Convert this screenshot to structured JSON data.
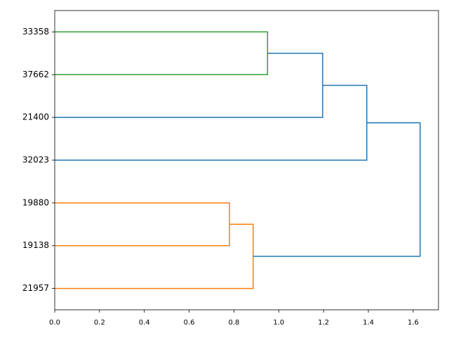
{
  "chart_data": {
    "type": "dendrogram",
    "leaves": [
      "33358",
      "37662",
      "21400",
      "32023",
      "19880",
      "19138",
      "21957"
    ],
    "merges": [
      {
        "left": 0,
        "right": 1,
        "height": 0.95,
        "color": "#2ca02c"
      },
      {
        "left": 7,
        "right": 2,
        "height": 1.196,
        "color": "#1f77b4"
      },
      {
        "left": 8,
        "right": 3,
        "height": 1.393,
        "color": "#1f77b4"
      },
      {
        "left": 4,
        "right": 5,
        "height": 0.78,
        "color": "#ff7f0e"
      },
      {
        "left": 10,
        "right": 6,
        "height": 0.886,
        "color": "#ff7f0e"
      },
      {
        "left": 9,
        "right": 11,
        "height": 1.631,
        "color": "#1f77b4"
      }
    ],
    "xlim": [
      0,
      1.713
    ],
    "xticks": [
      {
        "value": 0,
        "label": "0.0"
      },
      0.2,
      0.4,
      0.6,
      0.8,
      {
        "value": 1,
        "label": "1.0"
      },
      1.2,
      1.4,
      1.6
    ]
  }
}
